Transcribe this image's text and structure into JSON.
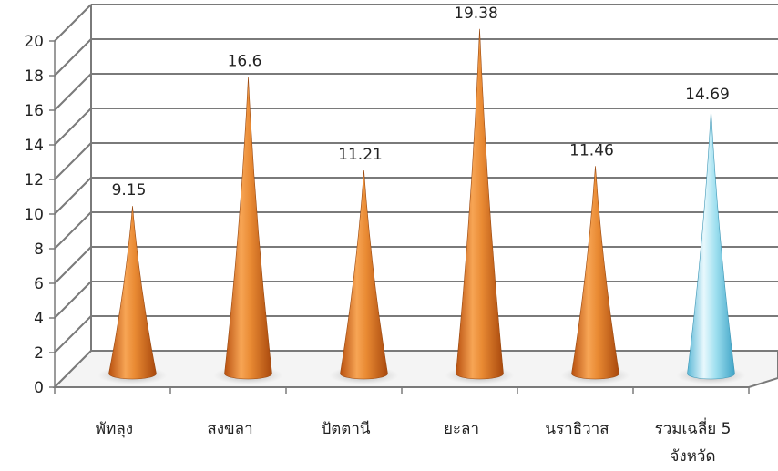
{
  "chart_data": {
    "type": "bar",
    "style": "3d-cone",
    "categories": [
      "พัทลุง",
      "สงขลา",
      "ปัตตานี",
      "ยะลา",
      "นราธิวาส",
      "รวมเฉลี่ย 5 จังหวัด"
    ],
    "category_lines": [
      [
        "พัทลุง"
      ],
      [
        "สงขลา"
      ],
      [
        "ปัตตานี"
      ],
      [
        "ยะลา"
      ],
      [
        "นราธิวาส"
      ],
      [
        "รวมเฉลี่ย 5",
        "จังหวัด"
      ]
    ],
    "values": [
      9.15,
      16.6,
      11.21,
      19.38,
      11.46,
      14.69
    ],
    "data_labels": [
      "9.15",
      "16.6",
      "11.21",
      "19.38",
      "11.46",
      "14.69"
    ],
    "ylim": [
      0,
      20
    ],
    "yticks": [
      0,
      2,
      4,
      6,
      8,
      10,
      12,
      14,
      16,
      18,
      20
    ],
    "grid": true,
    "title": "",
    "xlabel": "",
    "ylabel": "",
    "colors": {
      "bar": "#e8802a",
      "highlight_bar": "#7fd3e8",
      "grid": "#7a7a7a",
      "text": "#222222"
    }
  }
}
